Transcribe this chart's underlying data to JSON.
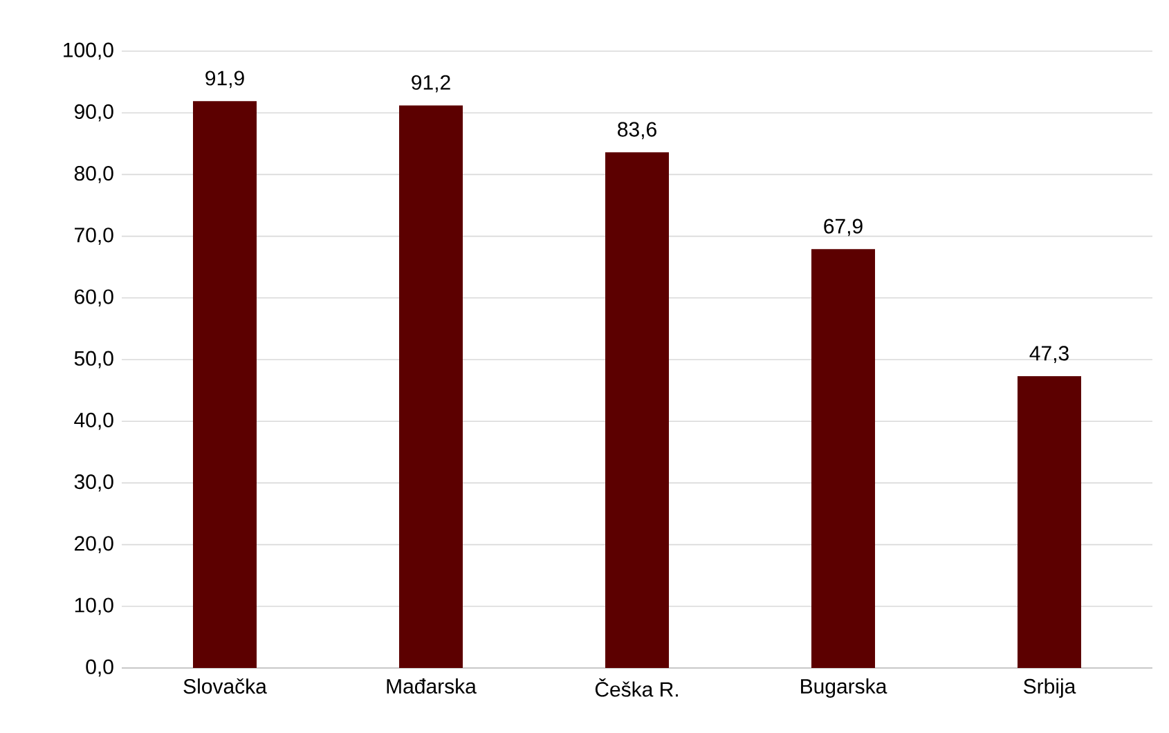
{
  "chart_data": {
    "type": "bar",
    "categories": [
      "Slovačka",
      "Mađarska",
      "Češka R.",
      "Bugarska",
      "Srbija"
    ],
    "values": [
      91.9,
      91.2,
      83.6,
      67.9,
      47.3
    ],
    "value_labels": [
      "91,9",
      "91,2",
      "83,6",
      "67,9",
      "47,3"
    ],
    "color": "#5c0000",
    "ylim": [
      0,
      100
    ],
    "yticks": [
      {
        "value": 0,
        "label": "0,0"
      },
      {
        "value": 10,
        "label": "10,0"
      },
      {
        "value": 20,
        "label": "20,0"
      },
      {
        "value": 30,
        "label": "30,0"
      },
      {
        "value": 40,
        "label": "40,0"
      },
      {
        "value": 50,
        "label": "50,0"
      },
      {
        "value": 60,
        "label": "60,0"
      },
      {
        "value": 70,
        "label": "70,0"
      },
      {
        "value": 80,
        "label": "80,0"
      },
      {
        "value": 90,
        "label": "90,0"
      },
      {
        "value": 100,
        "label": "100,0"
      }
    ],
    "grid": "y"
  }
}
